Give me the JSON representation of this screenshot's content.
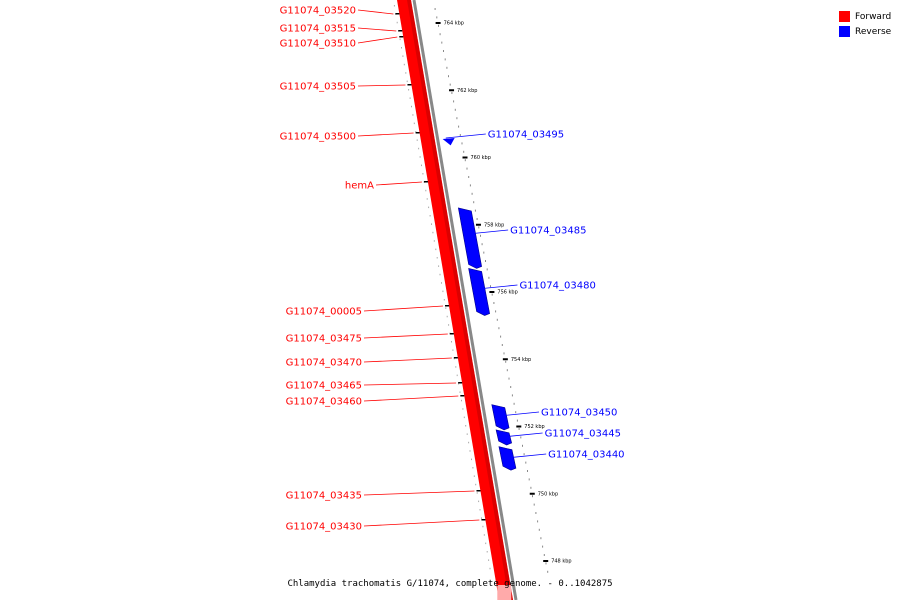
{
  "caption": "Chlamydia trachomatis G/11074, complete genome. - 0..1042875",
  "colors": {
    "forward": "#ff0000",
    "reverse": "#0000ff",
    "backbone": "#888888"
  },
  "legend": [
    {
      "label": "Forward",
      "color": "#ff0000"
    },
    {
      "label": "Reverse",
      "color": "#0000ff"
    }
  ],
  "ticks": [
    {
      "label": "764 kbp",
      "kbp": 764
    },
    {
      "label": "762 kbp",
      "kbp": 762
    },
    {
      "label": "760 kbp",
      "kbp": 760
    },
    {
      "label": "758 kbp",
      "kbp": 758
    },
    {
      "label": "756 kbp",
      "kbp": 756
    },
    {
      "label": "754 kbp",
      "kbp": 754
    },
    {
      "label": "752 kbp",
      "kbp": 752
    },
    {
      "label": "750 kbp",
      "kbp": 750
    },
    {
      "label": "748 kbp",
      "kbp": 748
    }
  ],
  "forward_genes": [
    "G11074_03520",
    "G11074_03515",
    "G11074_03510",
    "G11074_03505",
    "G11074_03500",
    "hemA",
    "G11074_00005",
    "G11074_03475",
    "G11074_03470",
    "G11074_03465",
    "G11074_03460",
    "G11074_03435",
    "G11074_03430"
  ],
  "reverse_genes": [
    {
      "label": "G11074_03495",
      "start_kbp": 760.55,
      "end_kbp": 760.45
    },
    {
      "label": "G11074_03485",
      "start_kbp": 758.5,
      "end_kbp": 756.7
    },
    {
      "label": "G11074_03480",
      "start_kbp": 756.7,
      "end_kbp": 755.3
    },
    {
      "label": "G11074_03450",
      "start_kbp": 752.65,
      "end_kbp": 751.9
    },
    {
      "label": "G11074_03445",
      "start_kbp": 751.9,
      "end_kbp": 751.45
    },
    {
      "label": "G11074_03440",
      "start_kbp": 751.4,
      "end_kbp": 750.7
    }
  ]
}
